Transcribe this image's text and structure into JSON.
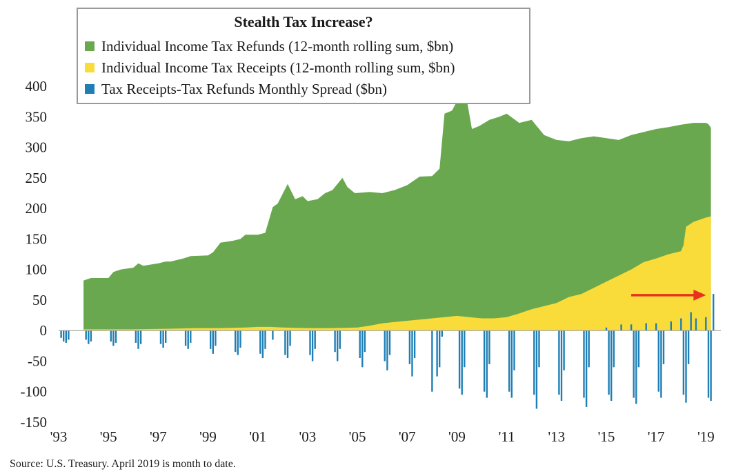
{
  "chart_data": {
    "type": "area",
    "title": "Stealth Tax Increase?",
    "colors": {
      "refunds": "#6aa84f",
      "receipts": "#f9dc3a",
      "spread": "#1f7fb5",
      "arrow": "#e8321f",
      "frame": "#999999"
    },
    "ylim": [
      -150,
      400
    ],
    "yticks": [
      "400",
      "350",
      "300",
      "250",
      "200",
      "150",
      "100",
      "50",
      "0",
      "-50",
      "-100",
      "-150"
    ],
    "ytick_values": [
      400,
      350,
      300,
      250,
      200,
      150,
      100,
      50,
      0,
      -50,
      -100,
      -150
    ],
    "xlim": [
      1993.0,
      2019.6
    ],
    "xticks": [
      {
        "label": "'93",
        "x": 1993
      },
      {
        "label": "'95",
        "x": 1995
      },
      {
        "label": "'97",
        "x": 1997
      },
      {
        "label": "'99",
        "x": 1999
      },
      {
        "label": "'01",
        "x": 2001
      },
      {
        "label": "'03",
        "x": 2003
      },
      {
        "label": "'05",
        "x": 2005
      },
      {
        "label": "'07",
        "x": 2007
      },
      {
        "label": "'09",
        "x": 2009
      },
      {
        "label": "'11",
        "x": 2011
      },
      {
        "label": "'13",
        "x": 2013
      },
      {
        "label": "'15",
        "x": 2015
      },
      {
        "label": "'17",
        "x": 2017
      },
      {
        "label": "'19",
        "x": 2019
      }
    ],
    "legend": [
      {
        "label": "Individual Income Tax Refunds (12-month rolling sum, $bn)",
        "color": "#6aa84f"
      },
      {
        "label": "Individual Income Tax Receipts (12-month rolling sum, $bn)",
        "color": "#f9dc3a"
      },
      {
        "label": "Tax Receipts-Tax Refunds Monthly Spread ($bn)",
        "color": "#1f7fb5"
      }
    ],
    "series": [
      {
        "name": "Individual Income Tax Refunds (12-month rolling sum, $bn)",
        "x": [
          1994.0,
          1994.3,
          1995.0,
          1995.2,
          1995.5,
          1996.0,
          1996.2,
          1996.4,
          1997.0,
          1997.3,
          1997.5,
          1998.0,
          1998.3,
          1999.0,
          1999.2,
          1999.5,
          2000.0,
          2000.3,
          2000.5,
          2001.0,
          2001.3,
          2001.6,
          2001.8,
          2002.2,
          2002.5,
          2002.8,
          2003.0,
          2003.4,
          2003.7,
          2004.0,
          2004.4,
          2004.6,
          2004.9,
          2005.5,
          2006.0,
          2006.5,
          2007.0,
          2007.5,
          2008.0,
          2008.3,
          2008.5,
          2008.8,
          2009.0,
          2009.3,
          2009.6,
          2009.9,
          2010.3,
          2010.7,
          2011.0,
          2011.5,
          2012.0,
          2012.5,
          2013.0,
          2013.5,
          2014.0,
          2014.5,
          2015.0,
          2015.5,
          2016.0,
          2016.5,
          2017.0,
          2017.5,
          2018.0,
          2018.5,
          2019.0,
          2019.1,
          2019.2
        ],
        "values": [
          82,
          86,
          86,
          96,
          100,
          103,
          110,
          106,
          110,
          113,
          113,
          118,
          122,
          123,
          128,
          144,
          147,
          150,
          157,
          157,
          160,
          202,
          208,
          240,
          215,
          220,
          212,
          215,
          225,
          230,
          250,
          235,
          225,
          227,
          225,
          230,
          238,
          252,
          253,
          265,
          355,
          360,
          375,
          400,
          330,
          335,
          345,
          350,
          355,
          340,
          345,
          320,
          312,
          310,
          315,
          318,
          315,
          312,
          320,
          325,
          330,
          333,
          337,
          340,
          340,
          338,
          332
        ]
      },
      {
        "name": "Individual Income Tax Receipts (12-month rolling sum, $bn)",
        "x": [
          1994.0,
          1996.0,
          1997.5,
          1998.5,
          1999.5,
          2000.5,
          2001.0,
          2001.5,
          2002.0,
          2003.0,
          2004.0,
          2005.0,
          2005.5,
          2006.0,
          2006.5,
          2007.0,
          2007.5,
          2008.0,
          2008.5,
          2009.0,
          2009.5,
          2010.0,
          2010.5,
          2011.0,
          2011.5,
          2012.0,
          2012.5,
          2013.0,
          2013.5,
          2014.0,
          2014.5,
          2015.0,
          2015.5,
          2016.0,
          2016.5,
          2017.0,
          2017.5,
          2018.0,
          2018.1,
          2018.2,
          2018.5,
          2019.0,
          2019.2
        ],
        "values": [
          2,
          2,
          3,
          4,
          4,
          5,
          6,
          6,
          5,
          4,
          4,
          5,
          8,
          12,
          14,
          16,
          18,
          20,
          22,
          24,
          22,
          20,
          20,
          22,
          28,
          35,
          40,
          45,
          55,
          60,
          70,
          80,
          90,
          100,
          112,
          118,
          125,
          130,
          140,
          170,
          178,
          185,
          187
        ]
      },
      {
        "name": "Tax Receipts-Tax Refunds Monthly Spread ($bn)",
        "x": [
          1993.1,
          1993.2,
          1993.3,
          1993.4,
          1994.1,
          1994.2,
          1994.3,
          1995.1,
          1995.2,
          1995.3,
          1996.1,
          1996.2,
          1996.3,
          1997.1,
          1997.2,
          1997.3,
          1998.1,
          1998.2,
          1998.3,
          1999.1,
          1999.2,
          1999.3,
          2000.1,
          2000.2,
          2000.3,
          2001.1,
          2001.2,
          2001.3,
          2001.6,
          2002.1,
          2002.2,
          2002.3,
          2003.1,
          2003.2,
          2003.3,
          2004.1,
          2004.2,
          2004.3,
          2005.1,
          2005.2,
          2005.3,
          2006.1,
          2006.2,
          2006.3,
          2007.1,
          2007.2,
          2007.3,
          2008.0,
          2008.2,
          2008.3,
          2008.4,
          2009.1,
          2009.2,
          2009.3,
          2010.1,
          2010.2,
          2010.3,
          2011.1,
          2011.2,
          2011.3,
          2012.1,
          2012.2,
          2012.3,
          2013.1,
          2013.2,
          2013.3,
          2014.1,
          2014.2,
          2014.3,
          2015.0,
          2015.1,
          2015.2,
          2015.3,
          2015.6,
          2016.0,
          2016.1,
          2016.2,
          2016.3,
          2016.6,
          2017.0,
          2017.1,
          2017.2,
          2017.3,
          2017.6,
          2018.0,
          2018.1,
          2018.2,
          2018.3,
          2018.4,
          2018.6,
          2019.0,
          2019.1,
          2019.2,
          2019.3
        ],
        "values": [
          -12,
          -18,
          -20,
          -15,
          -15,
          -22,
          -18,
          -18,
          -25,
          -20,
          -20,
          -30,
          -22,
          -22,
          -28,
          -20,
          -25,
          -30,
          -20,
          -30,
          -38,
          -25,
          -35,
          -40,
          -28,
          -38,
          -45,
          -30,
          -15,
          -40,
          -45,
          -25,
          -40,
          -50,
          -30,
          -35,
          -50,
          -30,
          -45,
          -60,
          -35,
          -50,
          -65,
          -40,
          -55,
          -75,
          -45,
          -100,
          -75,
          -60,
          -10,
          -95,
          -105,
          -60,
          -100,
          -110,
          -55,
          -100,
          -110,
          -65,
          -105,
          -128,
          -60,
          -105,
          -115,
          -65,
          -110,
          -125,
          -60,
          5,
          -105,
          -115,
          -60,
          10,
          10,
          -110,
          -120,
          -60,
          12,
          12,
          -100,
          -110,
          -55,
          15,
          20,
          -105,
          -118,
          -55,
          30,
          20,
          22,
          -110,
          -115,
          60
        ]
      }
    ],
    "annotation": {
      "type": "arrow",
      "from_x": 2016.0,
      "to_x": 2019.0,
      "y": 58
    }
  },
  "footer": {
    "source": "Source: U.S. Treasury. April 2019 is month to date."
  }
}
